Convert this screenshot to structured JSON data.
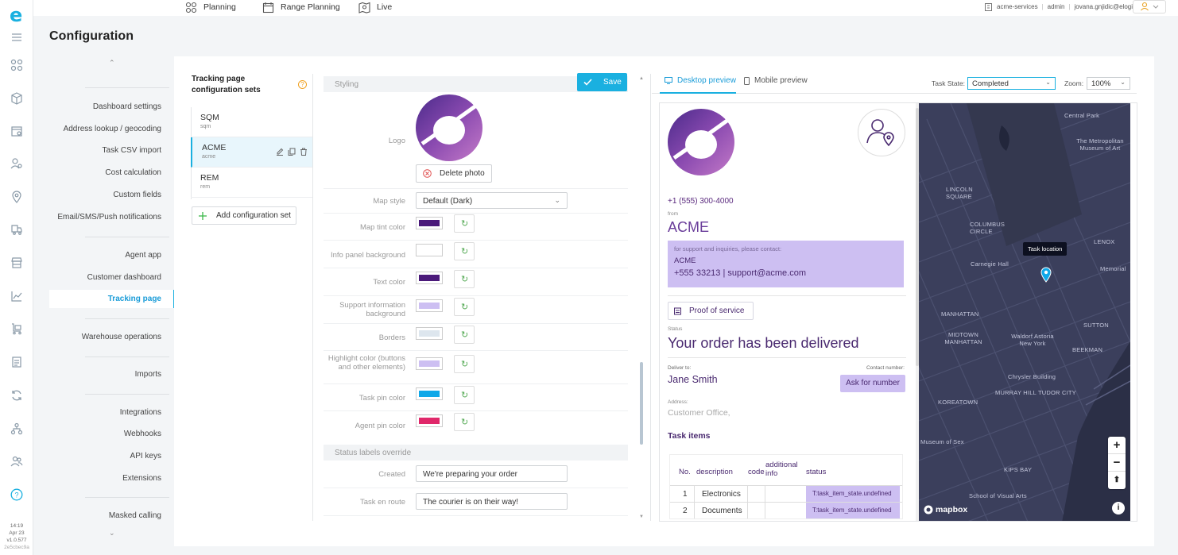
{
  "rail": {
    "version": [
      "14:19",
      "Apr 23",
      "v1.0.577",
      "2e5cbec9a"
    ]
  },
  "topnav": {
    "planning": "Planning",
    "range_planning": "Range Planning",
    "live": "Live",
    "company": "acme-services",
    "role": "admin",
    "email": "jovana.gnjidic@elogii.com"
  },
  "page": {
    "title": "Configuration"
  },
  "sidebar": {
    "items": [
      "Dashboard settings",
      "Address lookup / geocoding",
      "Task CSV import",
      "Cost calculation",
      "Custom fields",
      "Email/SMS/Push notifications",
      "Agent app",
      "Customer dashboard",
      "Tracking page",
      "Warehouse operations",
      "Imports",
      "Integrations",
      "Webhooks",
      "API keys",
      "Extensions",
      "Masked calling"
    ],
    "active": "Tracking page"
  },
  "sets": {
    "title": "Tracking page configuration sets",
    "items": [
      {
        "name": "SQM",
        "code": "sqm"
      },
      {
        "name": "ACME",
        "code": "acme"
      },
      {
        "name": "REM",
        "code": "rem"
      }
    ],
    "add_label": "Add configuration set"
  },
  "styling": {
    "section": "Styling",
    "save_label": "Save",
    "logo_label": "Logo",
    "delete_photo": "Delete photo",
    "map_style_label": "Map style",
    "map_style_value": "Default (Dark)",
    "colors": [
      {
        "label": "Map tint color",
        "value": "#4b1a7a"
      },
      {
        "label": "Info panel background",
        "value": "#ffffff"
      },
      {
        "label": "Text color",
        "value": "#4b1a7a"
      },
      {
        "label": "Support information background",
        "value": "#cdbff2"
      },
      {
        "label": "Borders",
        "value": "#dde6ee"
      },
      {
        "label": "Highlight color (buttons and other elements)",
        "value": "#cdbff2"
      },
      {
        "label": "Task pin color",
        "value": "#10a8e8"
      },
      {
        "label": "Agent pin color",
        "value": "#e0286a"
      }
    ],
    "status_section": "Status labels override",
    "status_labels": [
      {
        "label": "Created",
        "value": "We're preparing your order"
      },
      {
        "label": "Task en route",
        "value": "The courier is on their way!"
      }
    ]
  },
  "preview": {
    "tabs": [
      "Desktop preview",
      "Mobile preview"
    ],
    "task_state_label": "Task State:",
    "task_state_value": "Completed",
    "zoom_label": "Zoom:",
    "zoom_value": "100%",
    "phone": "+1 (555) 300-4000",
    "from_label": "from",
    "company": "ACME",
    "support_intro": "for support and inquiries, please contact:",
    "support_name": "ACME",
    "support_contact": "+555 33213 | support@acme.com",
    "proof_label": "Proof of service",
    "status_label": "Status",
    "status_text": "Your order has been delivered",
    "deliver_label": "Deliver to:",
    "contact_label": "Contact number:",
    "customer_name": "Jane Smith",
    "ask_label": "Ask for number",
    "address_label": "Address:",
    "address": "Customer Office,",
    "items_title": "Task items",
    "table_headers": [
      "No.",
      "description",
      "code",
      "additional info",
      "status"
    ],
    "rows": [
      {
        "no": "1",
        "description": "Electronics",
        "code": "",
        "info": "",
        "status": "T:task_item_state.undefined"
      },
      {
        "no": "2",
        "description": "Documents",
        "code": "",
        "info": "",
        "status": "T:task_item_state.undefined"
      }
    ],
    "map": {
      "tooltip": "Task location",
      "attribution": "mapbox",
      "labels": [
        "Central Park",
        "The Metropolitan Museum of Art",
        "LINCOLN SQUARE",
        "COLUMBUS CIRCLE",
        "Carnegie Hall",
        "LENOX",
        "Memorial",
        "MANHATTAN",
        "MIDTOWN MANHATTAN",
        "Waldorf Astoria New York",
        "SUTTON",
        "BEEKMAN",
        "Chrysler Building",
        "MURRAY HILL",
        "TUDOR CITY",
        "KOREATOWN",
        "Museum of Sex",
        "KIPS BAY",
        "School of Visual Arts"
      ]
    }
  }
}
